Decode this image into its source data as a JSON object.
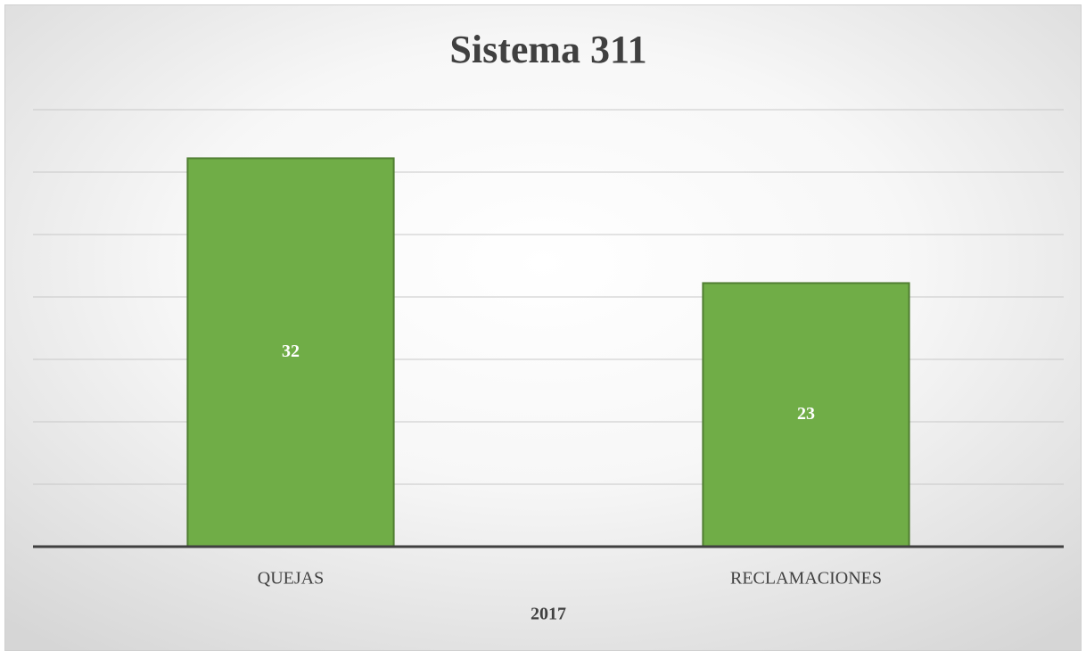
{
  "chart_data": {
    "type": "bar",
    "title": "Sistema 311",
    "x_label": "2017",
    "categories": [
      "QUEJAS",
      "RECLAMACIONES"
    ],
    "values": [
      32,
      23
    ],
    "color": "#70ad47",
    "ylim": [
      4,
      35.5
    ],
    "yticks": [
      4,
      8.5,
      13,
      17.5,
      22,
      26.5,
      31,
      35.5
    ],
    "grid": true
  }
}
